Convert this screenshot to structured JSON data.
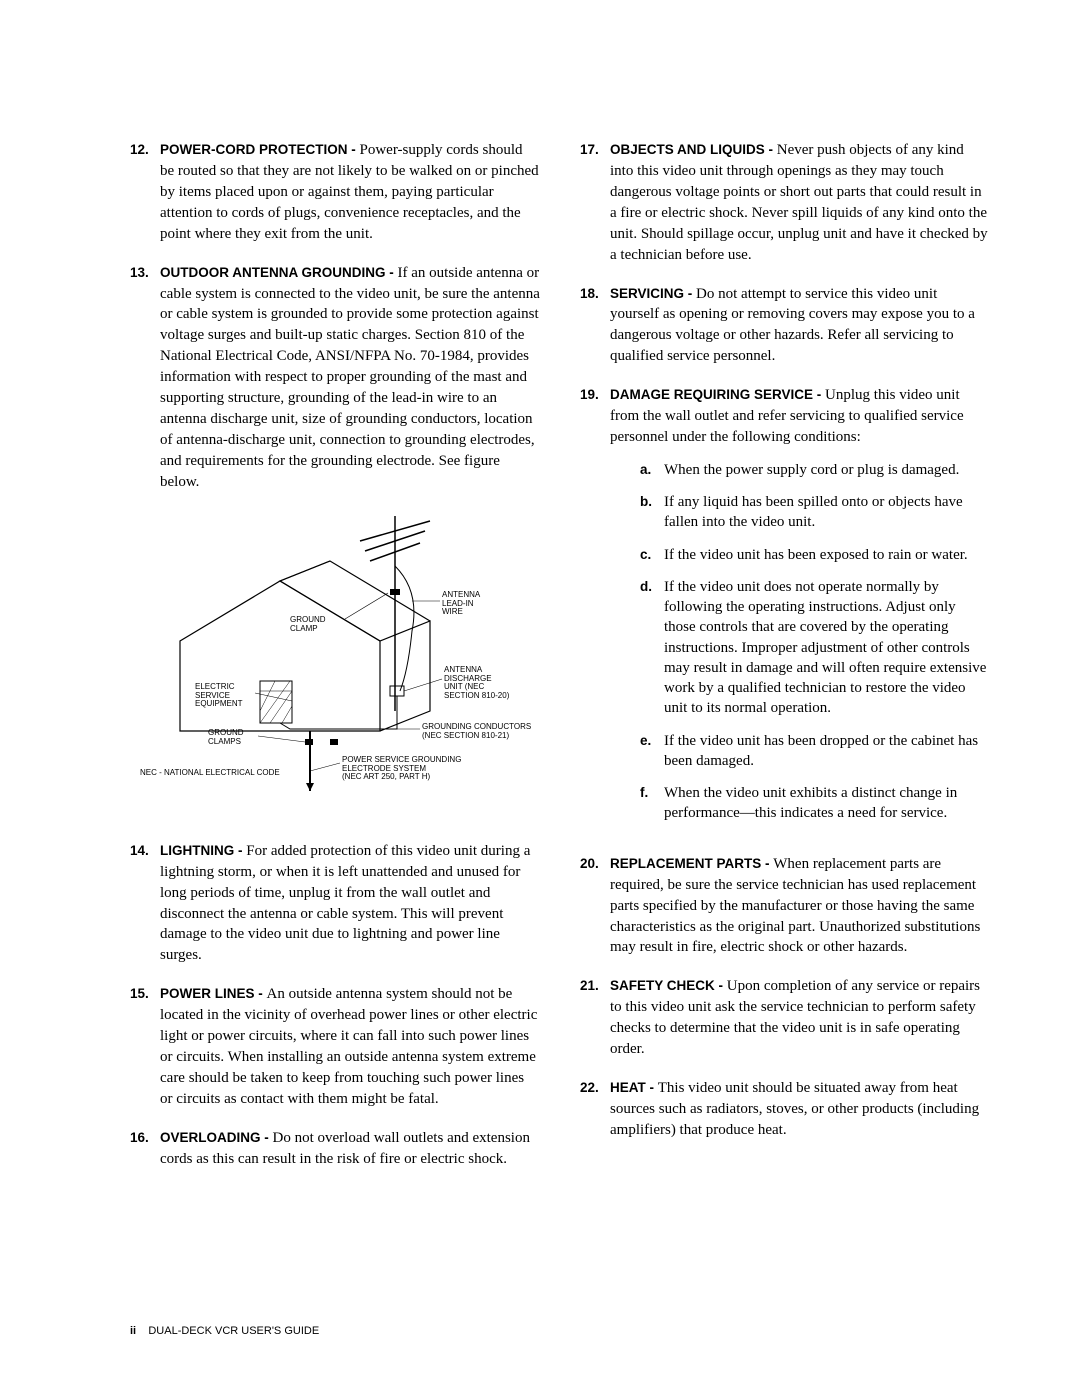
{
  "left_column": {
    "items": [
      {
        "number": "12.",
        "title": "POWER-CORD PROTECTION - ",
        "text": "Power-supply cords should be routed so that they are not likely to be walked on or pinched by items placed upon or against them, paying particular attention to cords of plugs, convenience receptacles, and the point where they exit from the unit."
      },
      {
        "number": "13.",
        "title": "OUTDOOR ANTENNA GROUNDING - ",
        "text": "If an outside antenna or cable system is connected to the video unit, be sure the antenna or cable system is grounded to provide some protection against voltage surges and built-up static charges. Section 810 of the National Electrical Code, ANSI/NFPA No. 70-1984, provides information with respect to proper grounding of the mast and supporting structure, grounding of the lead-in wire to an antenna discharge unit, size of grounding conductors, location of antenna-discharge unit, connection to grounding electrodes, and requirements for the grounding electrode. See figure below."
      }
    ],
    "after_diagram": [
      {
        "number": "14.",
        "title": "LIGHTNING - ",
        "text": "For added protection of this video unit during a lightning storm, or when it is left unattended and unused for long periods of time, unplug it from the wall outlet and disconnect the antenna or cable system. This will prevent damage to the video unit due to lightning and power line surges."
      },
      {
        "number": "15.",
        "title": "POWER LINES - ",
        "text": "An outside antenna system should not be located in the vicinity of overhead power lines or other electric light or power circuits, where it can fall into such power lines or circuits. When installing an outside antenna system extreme care should be taken to keep from touching such power lines or circuits as contact with them might be fatal."
      },
      {
        "number": "16.",
        "title": "OVERLOADING - ",
        "text": "Do not overload wall outlets and extension cords as this can result in the risk of fire or electric shock."
      }
    ]
  },
  "right_column": {
    "items": [
      {
        "number": "17.",
        "title": "OBJECTS AND LIQUIDS - ",
        "text": "Never push objects of any kind into this video unit through openings as they may touch dangerous voltage points or short out parts that could result in a fire or electric shock. Never spill liquids of any kind onto the unit. Should spillage occur, unplug unit and have it checked by a technician before use."
      },
      {
        "number": "18.",
        "title": "SERVICING - ",
        "text": "Do not attempt to service this video unit yourself as opening or removing covers may expose you to a dangerous voltage or other hazards. Refer all servicing to qualified service personnel."
      },
      {
        "number": "19.",
        "title": "DAMAGE REQUIRING SERVICE - ",
        "text": "Unplug this video unit from the wall outlet and refer servicing to qualified service personnel under the following conditions:",
        "subitems": [
          {
            "letter": "a.",
            "text": "When the power supply cord or plug is damaged."
          },
          {
            "letter": "b.",
            "text": "If any liquid has been spilled onto or objects have fallen into the video unit."
          },
          {
            "letter": "c.",
            "text": "If the video unit has been exposed to rain or water."
          },
          {
            "letter": "d.",
            "text": "If the video unit does not operate normally by following the operating instructions. Adjust only those controls that are covered by the operating instructions. Improper adjustment of other controls may result in damage and will often require extensive work by a qualified technician to restore the video unit to its normal operation."
          },
          {
            "letter": "e.",
            "text": "If the video unit has been dropped or the cabinet has been damaged."
          },
          {
            "letter": "f.",
            "text": "When the video unit exhibits a distinct change in performance—this indicates a need for service."
          }
        ]
      },
      {
        "number": "20.",
        "title": "REPLACEMENT PARTS - ",
        "text": "When replacement parts are required, be sure the service technician has used replacement parts specified by the manufacturer or those having the same characteristics as the original part. Unauthorized substitutions may result in fire, electric shock or other hazards."
      },
      {
        "number": "21.",
        "title": "SAFETY CHECK - ",
        "text": "Upon completion of any service or repairs to this video unit ask the service technician to perform safety checks to determine that the video unit is in safe operating order."
      },
      {
        "number": "22.",
        "title": "HEAT - ",
        "text": "This video unit should be situated away from heat sources such as radiators, stoves, or other products (including amplifiers) that produce heat."
      }
    ]
  },
  "diagram": {
    "labels": {
      "antenna_leadin": "ANTENNA\nLEAD-IN\nWIRE",
      "ground_clamp_top": "GROUND\nCLAMP",
      "antenna_discharge": "ANTENNA\nDISCHARGE\nUNIT (NEC\nSECTION 810-20)",
      "electric_service": "ELECTRIC\nSERVICE\nEQUIPMENT",
      "ground_clamps_bottom": "GROUND\nCLAMPS",
      "grounding_conductors": "GROUNDING CONDUCTORS\n(NEC SECTION 810-21)",
      "power_service": "POWER SERVICE GROUNDING\nELECTRODE SYSTEM\n(NEC ART 250, PART H)",
      "nec_note": "NEC - NATIONAL ELECTRICAL CODE"
    }
  },
  "footer": {
    "page": "ii",
    "title": "DUAL-DECK VCR USER'S GUIDE"
  }
}
